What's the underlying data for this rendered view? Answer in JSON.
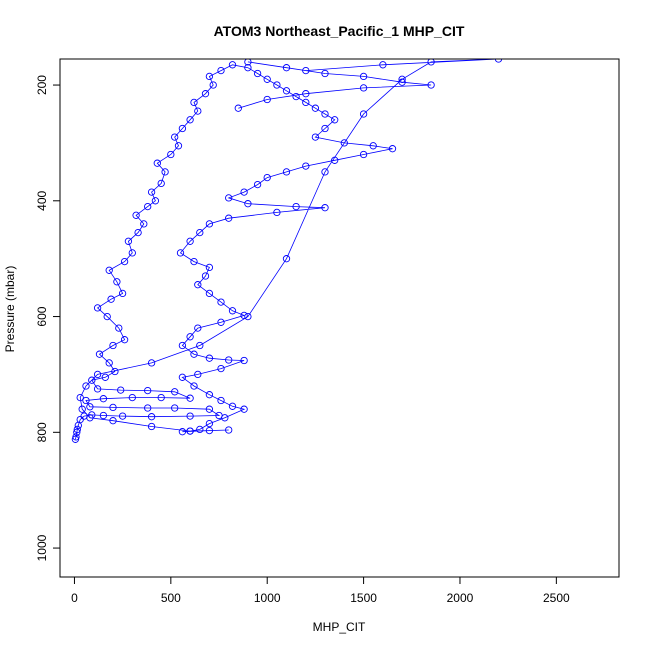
{
  "chart_data": {
    "type": "scatter",
    "title": "ATOM3 Northeast_Pacific_1 MHP_CIT",
    "xlabel": "MHP_CIT",
    "ylabel": "Pressure (mbar)",
    "xlim": [
      -75,
      2825
    ],
    "ylim": [
      1050,
      155
    ],
    "y_reversed": true,
    "x_ticks": [
      0,
      500,
      1000,
      1500,
      2000,
      2500
    ],
    "y_ticks": [
      200,
      400,
      600,
      800,
      1000
    ],
    "grid": false,
    "legend": "none",
    "marker": "open-circle",
    "connect_points": true,
    "series": [
      {
        "color": "#0000ff",
        "points": [
          [
            5,
            812
          ],
          [
            8,
            808
          ],
          [
            12,
            800
          ],
          [
            15,
            795
          ],
          [
            20,
            788
          ],
          [
            30,
            778
          ],
          [
            50,
            772
          ],
          [
            90,
            770
          ],
          [
            150,
            771
          ],
          [
            250,
            772
          ],
          [
            400,
            773
          ],
          [
            600,
            772
          ],
          [
            750,
            771
          ],
          [
            700,
            760
          ],
          [
            520,
            758
          ],
          [
            380,
            758
          ],
          [
            200,
            757
          ],
          [
            80,
            756
          ],
          [
            60,
            745
          ],
          [
            150,
            742
          ],
          [
            300,
            740
          ],
          [
            450,
            740
          ],
          [
            600,
            741
          ],
          [
            520,
            730
          ],
          [
            380,
            728
          ],
          [
            240,
            727
          ],
          [
            120,
            725
          ],
          [
            90,
            710
          ],
          [
            160,
            705
          ],
          [
            210,
            695
          ],
          [
            180,
            680
          ],
          [
            130,
            665
          ],
          [
            200,
            650
          ],
          [
            260,
            640
          ],
          [
            230,
            620
          ],
          [
            170,
            600
          ],
          [
            120,
            585
          ],
          [
            190,
            570
          ],
          [
            250,
            560
          ],
          [
            220,
            540
          ],
          [
            180,
            520
          ],
          [
            260,
            505
          ],
          [
            300,
            490
          ],
          [
            280,
            470
          ],
          [
            330,
            455
          ],
          [
            360,
            440
          ],
          [
            320,
            425
          ],
          [
            380,
            410
          ],
          [
            420,
            400
          ],
          [
            400,
            385
          ],
          [
            450,
            370
          ],
          [
            470,
            350
          ],
          [
            430,
            335
          ],
          [
            500,
            320
          ],
          [
            540,
            305
          ],
          [
            520,
            290
          ],
          [
            560,
            275
          ],
          [
            600,
            260
          ],
          [
            640,
            245
          ],
          [
            620,
            230
          ],
          [
            680,
            215
          ],
          [
            720,
            200
          ],
          [
            700,
            185
          ],
          [
            760,
            175
          ],
          [
            820,
            165
          ],
          [
            900,
            170
          ],
          [
            950,
            180
          ],
          [
            1000,
            190
          ],
          [
            1050,
            200
          ],
          [
            1100,
            210
          ],
          [
            1150,
            220
          ],
          [
            1200,
            230
          ],
          [
            1250,
            240
          ],
          [
            1300,
            250
          ],
          [
            1350,
            260
          ],
          [
            1300,
            275
          ],
          [
            1250,
            290
          ],
          [
            1400,
            300
          ],
          [
            1550,
            305
          ],
          [
            1650,
            310
          ],
          [
            1500,
            320
          ],
          [
            1350,
            330
          ],
          [
            1200,
            340
          ],
          [
            1100,
            350
          ],
          [
            1000,
            360
          ],
          [
            950,
            372
          ],
          [
            880,
            385
          ],
          [
            800,
            395
          ],
          [
            900,
            405
          ],
          [
            1150,
            410
          ],
          [
            1300,
            412
          ],
          [
            1050,
            420
          ],
          [
            800,
            430
          ],
          [
            700,
            440
          ],
          [
            650,
            455
          ],
          [
            600,
            470
          ],
          [
            550,
            490
          ],
          [
            620,
            505
          ],
          [
            700,
            515
          ],
          [
            680,
            530
          ],
          [
            640,
            545
          ],
          [
            700,
            560
          ],
          [
            760,
            575
          ],
          [
            820,
            590
          ],
          [
            880,
            598
          ],
          [
            760,
            610
          ],
          [
            640,
            620
          ],
          [
            600,
            635
          ],
          [
            560,
            650
          ],
          [
            620,
            665
          ],
          [
            700,
            672
          ],
          [
            800,
            675
          ],
          [
            880,
            676
          ],
          [
            760,
            690
          ],
          [
            640,
            700
          ],
          [
            560,
            705
          ],
          [
            620,
            720
          ],
          [
            700,
            735
          ],
          [
            760,
            745
          ],
          [
            820,
            755
          ],
          [
            880,
            760
          ],
          [
            780,
            775
          ],
          [
            700,
            785
          ],
          [
            650,
            795
          ],
          [
            600,
            798
          ],
          [
            560,
            799
          ],
          [
            700,
            797
          ],
          [
            800,
            796
          ],
          [
            600,
            798
          ],
          [
            400,
            790
          ],
          [
            200,
            780
          ],
          [
            80,
            775
          ],
          [
            40,
            760
          ],
          [
            30,
            740
          ],
          [
            60,
            720
          ],
          [
            120,
            700
          ],
          [
            400,
            680
          ],
          [
            650,
            650
          ],
          [
            900,
            600
          ],
          [
            1100,
            500
          ],
          [
            1300,
            350
          ],
          [
            1500,
            250
          ],
          [
            1700,
            190
          ],
          [
            1850,
            160
          ],
          [
            2200,
            155
          ],
          [
            1600,
            165
          ],
          [
            1200,
            175
          ],
          [
            900,
            160
          ],
          [
            1100,
            170
          ],
          [
            1300,
            180
          ],
          [
            1500,
            185
          ],
          [
            1700,
            195
          ],
          [
            1850,
            200
          ],
          [
            1500,
            205
          ],
          [
            1200,
            215
          ],
          [
            1000,
            225
          ],
          [
            850,
            240
          ]
        ]
      }
    ]
  }
}
